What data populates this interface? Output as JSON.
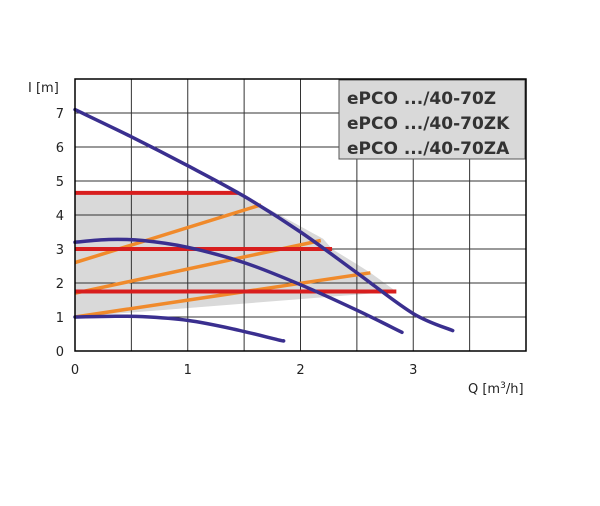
{
  "chart_data": {
    "type": "line",
    "ylabel": "I [m]",
    "xlabel_main": "Q [m",
    "xlabel_sup": "3",
    "xlabel_tail": "/h]",
    "xlim": [
      0,
      4
    ],
    "ylim": [
      0,
      8
    ],
    "x_ticks": [
      "0",
      "1",
      "2",
      "3"
    ],
    "y_ticks": [
      "0",
      "1",
      "2",
      "3",
      "4",
      "5",
      "6",
      "7"
    ],
    "grid": true,
    "legend": [
      "ePCO .../40-70Z",
      "ePCO .../40-70ZK",
      "ePCO .../40-70ZA"
    ],
    "legend_position": "top-right",
    "colors": {
      "pump_curve": "#3a2f8f",
      "constant_pressure": "#d81e1e",
      "proportional_pressure": "#f08a2b",
      "working_area": "#d9d9d9",
      "grid": "#333333"
    },
    "pump_curves": [
      {
        "x": [
          0,
          0.5,
          1.0,
          1.5,
          2.0,
          2.5,
          3.0,
          3.35
        ],
        "y": [
          7.1,
          6.3,
          5.45,
          4.55,
          3.5,
          2.3,
          1.1,
          0.6
        ]
      },
      {
        "x": [
          0,
          0.3,
          0.6,
          1.0,
          1.5,
          2.0,
          2.5,
          2.9
        ],
        "y": [
          3.2,
          3.28,
          3.25,
          3.05,
          2.6,
          1.95,
          1.2,
          0.55
        ]
      },
      {
        "x": [
          0,
          0.3,
          0.6,
          1.0,
          1.4,
          1.8,
          1.85
        ],
        "y": [
          1.0,
          1.02,
          1.01,
          0.9,
          0.65,
          0.33,
          0.3
        ]
      }
    ],
    "constant_pressure_lines": [
      {
        "y": 4.65,
        "x": [
          0,
          1.45
        ]
      },
      {
        "y": 3.0,
        "x": [
          0,
          2.28
        ]
      },
      {
        "y": 1.75,
        "x": [
          0,
          2.85
        ]
      }
    ],
    "proportional_pressure_lines": [
      {
        "x": [
          0,
          1.65
        ],
        "y": [
          2.6,
          4.3
        ]
      },
      {
        "x": [
          0,
          2.18
        ],
        "y": [
          1.7,
          3.25
        ]
      },
      {
        "x": [
          0,
          2.62
        ],
        "y": [
          1.0,
          2.3
        ]
      }
    ],
    "working_area": {
      "x": [
        0,
        1.45,
        1.55,
        1.65,
        2.2,
        2.28,
        2.5,
        2.62,
        2.85,
        0
      ],
      "y": [
        4.65,
        4.65,
        4.5,
        4.3,
        3.3,
        3.0,
        2.55,
        2.3,
        1.75,
        1.0
      ]
    }
  }
}
